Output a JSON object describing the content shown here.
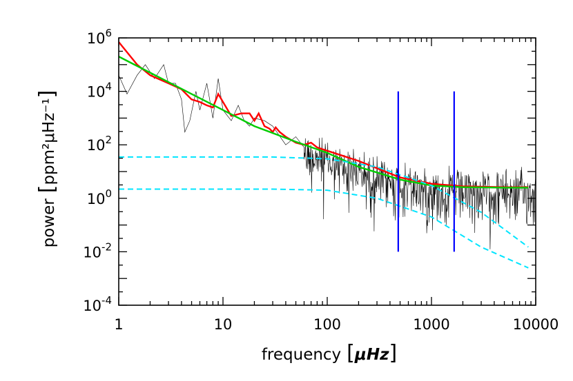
{
  "chart_data": {
    "type": "line",
    "title": "",
    "xlabel": "frequency",
    "xunit": "μHz",
    "ylabel": "power",
    "yunit": "ppm²μHz⁻¹",
    "x_scale": "log",
    "y_scale": "log",
    "xlim": [
      1,
      10000
    ],
    "ylim": [
      0.0001,
      1000000
    ],
    "grid": false,
    "legend": "none",
    "x_ticks": [
      {
        "value": 1,
        "label": "1"
      },
      {
        "value": 10,
        "label": "10"
      },
      {
        "value": 100,
        "label": "100"
      },
      {
        "value": 1000,
        "label": "1000"
      },
      {
        "value": 10000,
        "label": "10000"
      }
    ],
    "y_ticks": [
      {
        "value": 0.0001,
        "base": "10",
        "exp": "-4"
      },
      {
        "value": 0.01,
        "base": "10",
        "exp": "-2"
      },
      {
        "value": 1,
        "base": "10",
        "exp": "0"
      },
      {
        "value": 100,
        "base": "10",
        "exp": "2"
      },
      {
        "value": 10000,
        "base": "10",
        "exp": "4"
      },
      {
        "value": 1000000,
        "base": "10",
        "exp": "6"
      }
    ],
    "series": [
      {
        "kind": "spectrum",
        "color": "#000000",
        "x": [
          1,
          1.2,
          1.5,
          1.8,
          2.2,
          2.7,
          3,
          3.5,
          4,
          4.3,
          4.8,
          5.5,
          6,
          7,
          8,
          9,
          10,
          12,
          14,
          16,
          18,
          20,
          25,
          30,
          40,
          50,
          60,
          80,
          100,
          200,
          300,
          500,
          1000,
          2000,
          5000,
          8500
        ],
        "y": [
          40000,
          8000,
          40000,
          100000,
          30000,
          100000,
          20000,
          20000,
          5000,
          300,
          800,
          10000,
          2000,
          20000,
          1000,
          30000,
          2000,
          800,
          3000,
          800,
          500,
          1000,
          800,
          500,
          100,
          200,
          80,
          50,
          30,
          15,
          8,
          5,
          3,
          2.5,
          2.5,
          2.5
        ]
      },
      {
        "kind": "binned-spectrum",
        "color": "#ff0000",
        "x": [
          1,
          1.5,
          2,
          3,
          4,
          5,
          6,
          7,
          8,
          9,
          10,
          12,
          15,
          18,
          20,
          22,
          25,
          28,
          30,
          32,
          35,
          40,
          50,
          60,
          70,
          80,
          100,
          200,
          500,
          1000,
          2000,
          5000,
          8500
        ],
        "y": [
          700000,
          100000,
          40000,
          20000,
          12000,
          5000,
          4000,
          3000,
          2500,
          8000,
          4000,
          1200,
          1500,
          1500,
          800,
          1500,
          500,
          400,
          300,
          450,
          300,
          200,
          120,
          100,
          120,
          80,
          60,
          25,
          6,
          3.5,
          2.8,
          2.6,
          2.6
        ]
      },
      {
        "kind": "fit",
        "color": "#00cc00",
        "x": [
          1,
          2,
          5,
          10,
          20,
          50,
          100,
          200,
          500,
          1000,
          2000,
          5000,
          8500
        ],
        "y": [
          200000,
          50000,
          8000,
          2000,
          500,
          130,
          50,
          15,
          5,
          3,
          2.6,
          2.5,
          2.5
        ]
      },
      {
        "kind": "background-component",
        "color": "#00e5ff",
        "dashed": true,
        "x": [
          1,
          30,
          100,
          300,
          1000,
          3000,
          8500
        ],
        "y": [
          35,
          35,
          30,
          15,
          3,
          0.3,
          0.015
        ]
      },
      {
        "kind": "background-component",
        "color": "#00e5ff",
        "dashed": true,
        "x": [
          1,
          30,
          100,
          300,
          1000,
          3000,
          8500
        ],
        "y": [
          2.2,
          2.2,
          2,
          1,
          0.2,
          0.015,
          0.0025
        ]
      }
    ],
    "vertical_lines": [
      {
        "x": 480,
        "y_from": 0.01,
        "y_to": 10000,
        "color": "#0000ff"
      },
      {
        "x": 1650,
        "y_from": 0.01,
        "y_to": 10000,
        "color": "#0000ff"
      }
    ]
  }
}
